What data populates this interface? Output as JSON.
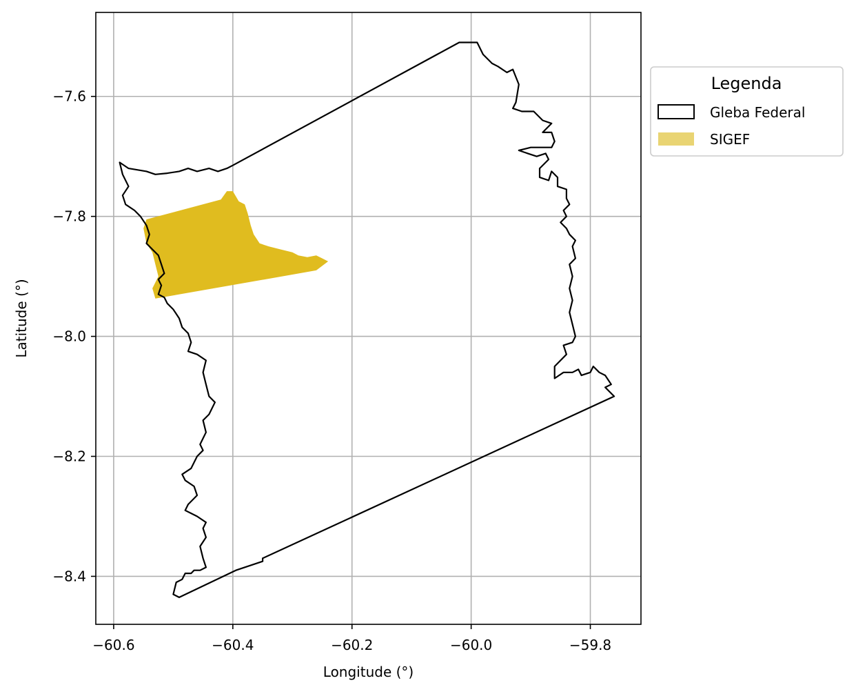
{
  "chart_data": {
    "type": "map",
    "xlabel": "Longitude (°)",
    "ylabel": "Latitude (°)",
    "xlim": [
      -60.63,
      -59.715
    ],
    "ylim": [
      -8.48,
      -7.46
    ],
    "xticks": [
      -60.6,
      -60.4,
      -60.2,
      -60.0,
      -59.8
    ],
    "yticks": [
      -7.6,
      -7.8,
      -8.0,
      -8.2,
      -8.4
    ],
    "xtick_labels": [
      "−60.6",
      "−60.4",
      "−60.2",
      "−60.0",
      "−59.8"
    ],
    "ytick_labels": [
      "−7.6",
      "−7.8",
      "−8.0",
      "−8.2",
      "−8.4"
    ],
    "grid": true,
    "legend": {
      "title": "Legenda",
      "placement": "outside-right-top",
      "entries": [
        {
          "label": "Gleba Federal",
          "style": "outline",
          "color": "#000000"
        },
        {
          "label": "SIGEF",
          "style": "fill",
          "color": "#e9d473"
        }
      ]
    },
    "series": [
      {
        "name": "Gleba Federal",
        "style": "outline",
        "color": "#000000",
        "polygon": [
          [
            -60.02,
            -7.51
          ],
          [
            -59.99,
            -7.51
          ],
          [
            -59.98,
            -7.53
          ],
          [
            -59.965,
            -7.545
          ],
          [
            -59.955,
            -7.55
          ],
          [
            -59.94,
            -7.56
          ],
          [
            -59.93,
            -7.555
          ],
          [
            -59.92,
            -7.58
          ],
          [
            -59.925,
            -7.61
          ],
          [
            -59.93,
            -7.62
          ],
          [
            -59.915,
            -7.625
          ],
          [
            -59.895,
            -7.625
          ],
          [
            -59.88,
            -7.64
          ],
          [
            -59.865,
            -7.645
          ],
          [
            -59.88,
            -7.66
          ],
          [
            -59.865,
            -7.66
          ],
          [
            -59.86,
            -7.675
          ],
          [
            -59.865,
            -7.685
          ],
          [
            -59.9,
            -7.685
          ],
          [
            -59.92,
            -7.69
          ],
          [
            -59.905,
            -7.695
          ],
          [
            -59.89,
            -7.7
          ],
          [
            -59.875,
            -7.695
          ],
          [
            -59.87,
            -7.705
          ],
          [
            -59.885,
            -7.72
          ],
          [
            -59.885,
            -7.735
          ],
          [
            -59.87,
            -7.74
          ],
          [
            -59.865,
            -7.725
          ],
          [
            -59.855,
            -7.735
          ],
          [
            -59.855,
            -7.75
          ],
          [
            -59.84,
            -7.755
          ],
          [
            -59.84,
            -7.77
          ],
          [
            -59.835,
            -7.78
          ],
          [
            -59.845,
            -7.79
          ],
          [
            -59.84,
            -7.8
          ],
          [
            -59.85,
            -7.81
          ],
          [
            -59.84,
            -7.82
          ],
          [
            -59.835,
            -7.83
          ],
          [
            -59.825,
            -7.84
          ],
          [
            -59.83,
            -7.85
          ],
          [
            -59.825,
            -7.87
          ],
          [
            -59.835,
            -7.88
          ],
          [
            -59.83,
            -7.9
          ],
          [
            -59.835,
            -7.92
          ],
          [
            -59.83,
            -7.94
          ],
          [
            -59.835,
            -7.96
          ],
          [
            -59.83,
            -7.98
          ],
          [
            -59.825,
            -8.0
          ],
          [
            -59.83,
            -8.01
          ],
          [
            -59.845,
            -8.015
          ],
          [
            -59.84,
            -8.03
          ],
          [
            -59.86,
            -8.05
          ],
          [
            -59.86,
            -8.07
          ],
          [
            -59.845,
            -8.06
          ],
          [
            -59.83,
            -8.06
          ],
          [
            -59.82,
            -8.055
          ],
          [
            -59.815,
            -8.065
          ],
          [
            -59.8,
            -8.06
          ],
          [
            -59.795,
            -8.05
          ],
          [
            -59.785,
            -8.06
          ],
          [
            -59.775,
            -8.065
          ],
          [
            -59.765,
            -8.08
          ],
          [
            -59.775,
            -8.085
          ],
          [
            -59.76,
            -8.1
          ],
          [
            -60.35,
            -8.37
          ],
          [
            -60.35,
            -8.375
          ],
          [
            -60.395,
            -8.39
          ],
          [
            -60.49,
            -8.435
          ],
          [
            -60.5,
            -8.43
          ],
          [
            -60.495,
            -8.41
          ],
          [
            -60.485,
            -8.405
          ],
          [
            -60.48,
            -8.395
          ],
          [
            -60.47,
            -8.395
          ],
          [
            -60.465,
            -8.39
          ],
          [
            -60.455,
            -8.39
          ],
          [
            -60.445,
            -8.385
          ],
          [
            -60.45,
            -8.37
          ],
          [
            -60.455,
            -8.35
          ],
          [
            -60.445,
            -8.335
          ],
          [
            -60.45,
            -8.32
          ],
          [
            -60.445,
            -8.31
          ],
          [
            -60.46,
            -8.3
          ],
          [
            -60.47,
            -8.295
          ],
          [
            -60.48,
            -8.29
          ],
          [
            -60.475,
            -8.28
          ],
          [
            -60.46,
            -8.265
          ],
          [
            -60.465,
            -8.25
          ],
          [
            -60.48,
            -8.24
          ],
          [
            -60.485,
            -8.23
          ],
          [
            -60.47,
            -8.22
          ],
          [
            -60.46,
            -8.2
          ],
          [
            -60.45,
            -8.19
          ],
          [
            -60.455,
            -8.18
          ],
          [
            -60.445,
            -8.16
          ],
          [
            -60.45,
            -8.14
          ],
          [
            -60.44,
            -8.13
          ],
          [
            -60.43,
            -8.11
          ],
          [
            -60.44,
            -8.1
          ],
          [
            -60.445,
            -8.08
          ],
          [
            -60.45,
            -8.06
          ],
          [
            -60.445,
            -8.04
          ],
          [
            -60.46,
            -8.03
          ],
          [
            -60.475,
            -8.025
          ],
          [
            -60.47,
            -8.01
          ],
          [
            -60.475,
            -7.995
          ],
          [
            -60.485,
            -7.985
          ],
          [
            -60.49,
            -7.97
          ],
          [
            -60.5,
            -7.955
          ],
          [
            -60.51,
            -7.945
          ],
          [
            -60.515,
            -7.935
          ],
          [
            -60.525,
            -7.93
          ],
          [
            -60.52,
            -7.915
          ],
          [
            -60.525,
            -7.905
          ],
          [
            -60.515,
            -7.895
          ],
          [
            -60.52,
            -7.88
          ],
          [
            -60.525,
            -7.865
          ],
          [
            -60.535,
            -7.855
          ],
          [
            -60.545,
            -7.845
          ],
          [
            -60.54,
            -7.83
          ],
          [
            -60.545,
            -7.815
          ],
          [
            -60.555,
            -7.8
          ],
          [
            -60.565,
            -7.79
          ],
          [
            -60.58,
            -7.78
          ],
          [
            -60.585,
            -7.765
          ],
          [
            -60.575,
            -7.75
          ],
          [
            -60.585,
            -7.73
          ],
          [
            -60.59,
            -7.71
          ],
          [
            -60.575,
            -7.72
          ],
          [
            -60.545,
            -7.725
          ],
          [
            -60.53,
            -7.73
          ],
          [
            -60.51,
            -7.728
          ],
          [
            -60.49,
            -7.725
          ],
          [
            -60.475,
            -7.72
          ],
          [
            -60.46,
            -7.725
          ],
          [
            -60.44,
            -7.72
          ],
          [
            -60.425,
            -7.725
          ],
          [
            -60.41,
            -7.72
          ],
          [
            -60.4,
            -7.715
          ],
          [
            -60.02,
            -7.51
          ]
        ]
      },
      {
        "name": "SIGEF",
        "style": "fill",
        "color": "#e0bc1f",
        "polygon": [
          [
            -60.41,
            -7.758
          ],
          [
            -60.4,
            -7.758
          ],
          [
            -60.39,
            -7.775
          ],
          [
            -60.38,
            -7.78
          ],
          [
            -60.375,
            -7.795
          ],
          [
            -60.37,
            -7.815
          ],
          [
            -60.365,
            -7.83
          ],
          [
            -60.355,
            -7.845
          ],
          [
            -60.34,
            -7.85
          ],
          [
            -60.32,
            -7.855
          ],
          [
            -60.3,
            -7.86
          ],
          [
            -60.29,
            -7.865
          ],
          [
            -60.275,
            -7.868
          ],
          [
            -60.26,
            -7.865
          ],
          [
            -60.25,
            -7.87
          ],
          [
            -60.24,
            -7.875
          ],
          [
            -60.26,
            -7.89
          ],
          [
            -60.3,
            -7.897
          ],
          [
            -60.53,
            -7.937
          ],
          [
            -60.535,
            -7.92
          ],
          [
            -60.525,
            -7.9
          ],
          [
            -60.53,
            -7.88
          ],
          [
            -60.535,
            -7.86
          ],
          [
            -60.545,
            -7.845
          ],
          [
            -60.55,
            -7.82
          ],
          [
            -60.545,
            -7.805
          ],
          [
            -60.42,
            -7.772
          ]
        ]
      }
    ]
  }
}
